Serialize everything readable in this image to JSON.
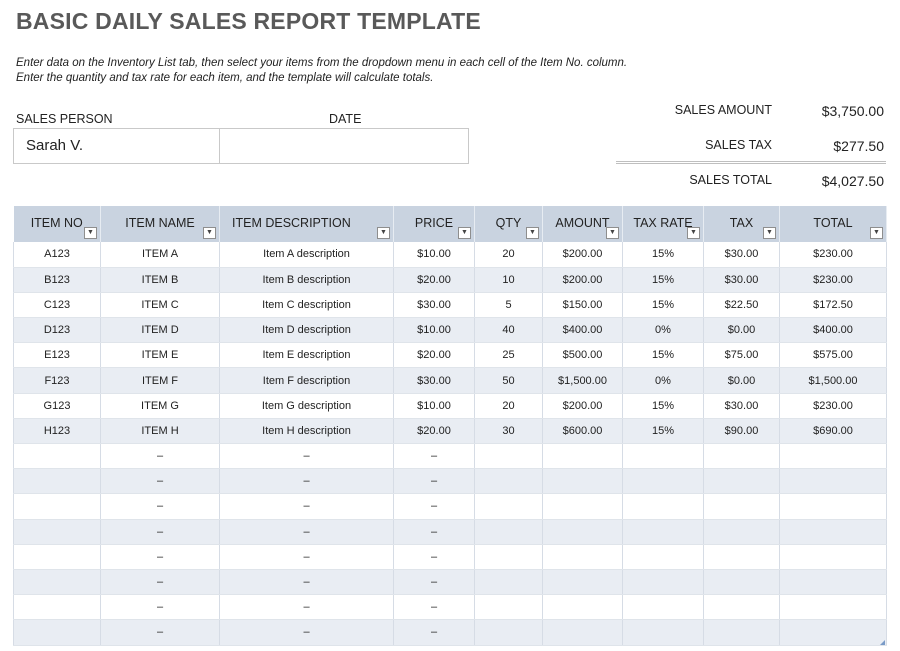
{
  "title": "BASIC DAILY SALES REPORT TEMPLATE",
  "instructions": [
    "Enter data on the Inventory List tab, then select your items from the dropdown menu in each cell of the Item No. column.",
    "Enter the quantity and tax rate for each item, and the template will calculate totals."
  ],
  "sales_person": {
    "label": "SALES PERSON",
    "value": "Sarah V."
  },
  "date": {
    "label": "DATE",
    "value": ""
  },
  "summary": {
    "sales_amount_label": "SALES AMOUNT",
    "sales_amount": "$3,750.00",
    "sales_tax_label": "SALES TAX",
    "sales_tax": "$277.50",
    "sales_total_label": "SALES TOTAL",
    "sales_total": "$4,027.50"
  },
  "table": {
    "headers": [
      "ITEM NO",
      "ITEM NAME",
      "ITEM DESCRIPTION",
      "PRICE",
      "QTY",
      "AMOUNT",
      "TAX RATE",
      "TAX",
      "TOTAL"
    ],
    "rows": [
      [
        "A123",
        "ITEM A",
        "Item A description",
        "$10.00",
        "20",
        "$200.00",
        "15%",
        "$30.00",
        "$230.00"
      ],
      [
        "B123",
        "ITEM B",
        "Item B description",
        "$20.00",
        "10",
        "$200.00",
        "15%",
        "$30.00",
        "$230.00"
      ],
      [
        "C123",
        "ITEM C",
        "Item C description",
        "$30.00",
        "5",
        "$150.00",
        "15%",
        "$22.50",
        "$172.50"
      ],
      [
        "D123",
        "ITEM D",
        "Item D description",
        "$10.00",
        "40",
        "$400.00",
        "0%",
        "$0.00",
        "$400.00"
      ],
      [
        "E123",
        "ITEM E",
        "Item E description",
        "$20.00",
        "25",
        "$500.00",
        "15%",
        "$75.00",
        "$575.00"
      ],
      [
        "F123",
        "ITEM F",
        "Item F description",
        "$30.00",
        "50",
        "$1,500.00",
        "0%",
        "$0.00",
        "$1,500.00"
      ],
      [
        "G123",
        "ITEM G",
        "Item G description",
        "$10.00",
        "20",
        "$200.00",
        "15%",
        "$30.00",
        "$230.00"
      ],
      [
        "H123",
        "ITEM H",
        "Item H description",
        "$20.00",
        "30",
        "$600.00",
        "15%",
        "$90.00",
        "$690.00"
      ],
      [
        "",
        "–",
        "–",
        "–",
        "",
        "",
        "",
        "",
        ""
      ],
      [
        "",
        "–",
        "–",
        "–",
        "",
        "",
        "",
        "",
        ""
      ],
      [
        "",
        "–",
        "–",
        "–",
        "",
        "",
        "",
        "",
        ""
      ],
      [
        "",
        "–",
        "–",
        "–",
        "",
        "",
        "",
        "",
        ""
      ],
      [
        "",
        "–",
        "–",
        "–",
        "",
        "",
        "",
        "",
        ""
      ],
      [
        "",
        "–",
        "–",
        "–",
        "",
        "",
        "",
        "",
        ""
      ],
      [
        "",
        "–",
        "–",
        "–",
        "",
        "",
        "",
        "",
        ""
      ],
      [
        "",
        "–",
        "–",
        "–",
        "",
        "",
        "",
        "",
        ""
      ]
    ]
  },
  "colors": {
    "header_bg": "#c9d3e0",
    "band_bg": "#e9edf3",
    "title": "#595959"
  }
}
